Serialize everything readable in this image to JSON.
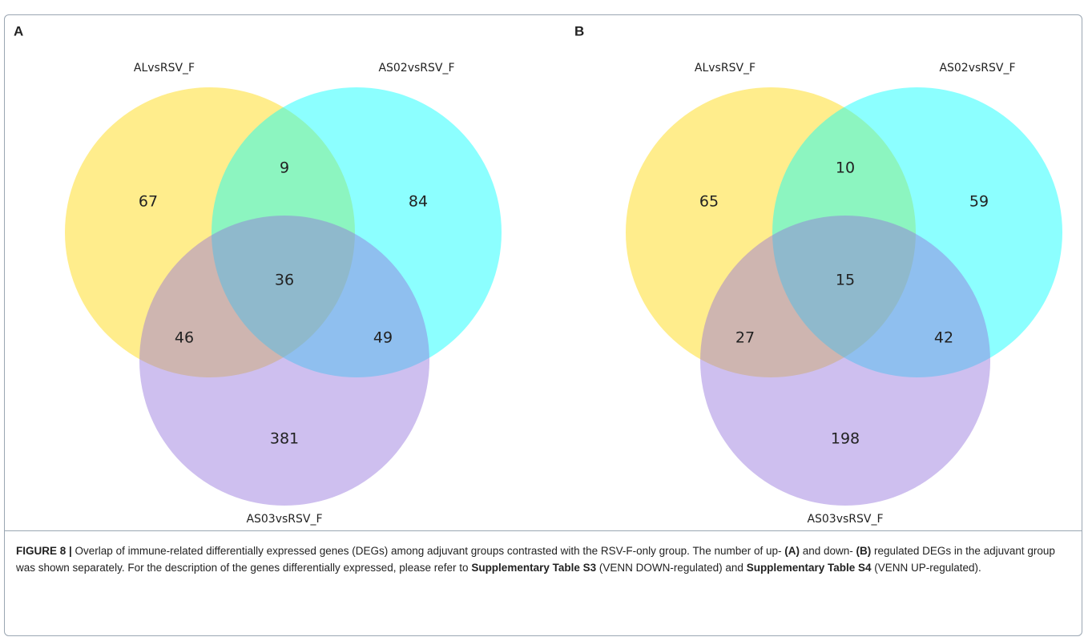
{
  "figure": {
    "panels": [
      {
        "label": "A",
        "sets": [
          "ALvsRSV_F",
          "AS02vsRSV_F",
          "AS03vsRSV_F"
        ],
        "regions": [
          "67",
          "9",
          "84",
          "36",
          "46",
          "49",
          "381"
        ]
      },
      {
        "label": "B",
        "sets": [
          "ALvsRSV_F",
          "AS02vsRSV_F",
          "AS03vsRSV_F"
        ],
        "regions": [
          "65",
          "10",
          "59",
          "15",
          "27",
          "42",
          "198"
        ]
      }
    ],
    "caption": [
      {
        "text": "FIGURE 8 |",
        "bold": true
      },
      {
        "text": " Overlap of immune-related differentially expressed genes (DEGs) among adjuvant groups contrasted with the RSV-F-only group. The number of up- ",
        "bold": false
      },
      {
        "text": "(A)",
        "bold": true
      },
      {
        "text": " and down- ",
        "bold": false
      },
      {
        "text": "(B)",
        "bold": true
      },
      {
        "text": " regulated DEGs in the adjuvant group was shown separately. For the description of the genes differentially expressed, please refer to ",
        "bold": false
      },
      {
        "text": "Supplementary Table S3",
        "bold": true
      },
      {
        "text": " (VENN DOWN-regulated) and ",
        "bold": false
      },
      {
        "text": "Supplementary Table S4",
        "bold": true
      },
      {
        "text": " (VENN UP-regulated).",
        "bold": false
      }
    ]
  }
}
